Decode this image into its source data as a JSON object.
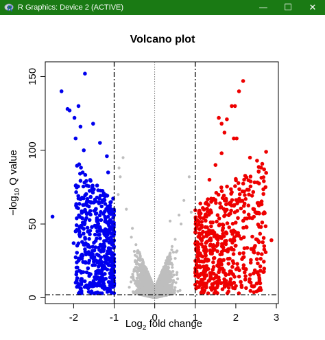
{
  "window": {
    "title": "R Graphics: Device 2 (ACTIVE)",
    "controls": {
      "minimize": "—",
      "maximize": "☐",
      "close": "✕"
    },
    "titlebar_color": "#1a7a14"
  },
  "chart_data": {
    "type": "scatter",
    "title": "Volcano plot",
    "xlabel": {
      "main": "Log",
      "sub": "2",
      "rest": " fold change"
    },
    "ylabel": {
      "main": "−log",
      "sub": "10",
      "rest": " Q value"
    },
    "xlim": [
      -2.7,
      3.05
    ],
    "ylim": [
      -4,
      160
    ],
    "x_ticks": [
      -2,
      -1,
      0,
      1,
      2,
      3
    ],
    "x_tick_labels": [
      "-2",
      "-1",
      "0",
      "1",
      "2",
      "3"
    ],
    "y_ticks": [
      0,
      50,
      100,
      150
    ],
    "y_tick_labels": [
      "0",
      "50",
      "100",
      "150"
    ],
    "thresholds": {
      "fold_change": [
        -1,
        1
      ],
      "q_value": 2,
      "center": 0
    },
    "colors": {
      "down": "#0000ee",
      "up": "#ee0000",
      "ns": "#bebebe"
    },
    "down_outliers": [
      [
        -2.52,
        55
      ],
      [
        -2.3,
        140
      ],
      [
        -2.15,
        128
      ],
      [
        -2.1,
        127
      ],
      [
        -1.98,
        122
      ],
      [
        -1.88,
        130
      ],
      [
        -1.83,
        116
      ],
      [
        -1.72,
        152
      ],
      [
        -1.95,
        108
      ],
      [
        -1.75,
        100
      ],
      [
        -1.52,
        118
      ],
      [
        -1.35,
        105
      ],
      [
        -1.18,
        96
      ],
      [
        -1.15,
        85
      ],
      [
        -1.95,
        45
      ],
      [
        -2.0,
        37
      ],
      [
        -1.6,
        43
      ]
    ],
    "up_outliers": [
      [
        2.18,
        147
      ],
      [
        2.08,
        140
      ],
      [
        1.98,
        130
      ],
      [
        1.9,
        130
      ],
      [
        1.78,
        121
      ],
      [
        1.58,
        122
      ],
      [
        1.65,
        118
      ],
      [
        1.72,
        112
      ],
      [
        1.95,
        108
      ],
      [
        1.65,
        98
      ],
      [
        2.02,
        108
      ],
      [
        2.35,
        95
      ],
      [
        2.45,
        60
      ],
      [
        2.62,
        48
      ],
      [
        2.88,
        39
      ],
      [
        2.7,
        35
      ],
      [
        2.55,
        30
      ],
      [
        1.5,
        90
      ],
      [
        1.35,
        80
      ]
    ],
    "ns_outliers": [
      [
        -0.78,
        95
      ],
      [
        -0.85,
        82
      ],
      [
        -0.88,
        88
      ],
      [
        -0.9,
        70
      ],
      [
        -0.7,
        60
      ],
      [
        0.85,
        82
      ],
      [
        0.72,
        66
      ],
      [
        0.6,
        56
      ],
      [
        0.9,
        58
      ],
      [
        0.38,
        52
      ],
      [
        0.65,
        50
      ],
      [
        -0.55,
        47
      ]
    ]
  }
}
